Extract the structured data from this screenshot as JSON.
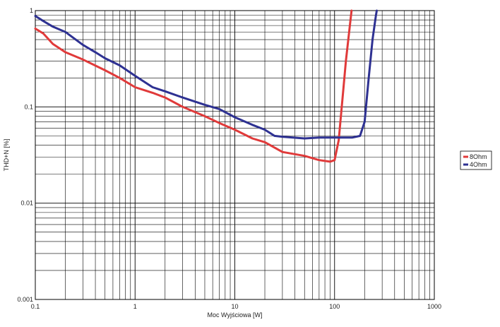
{
  "chart_data": {
    "type": "line",
    "xscale": "log",
    "yscale": "log",
    "xlim": [
      0.1,
      1000
    ],
    "ylim": [
      0.001,
      1
    ],
    "xlabel": "Moc Wyjściowa [W]",
    "ylabel": "THD+N [%]",
    "x_ticks": [
      {
        "value": 0.1,
        "label": "0.1"
      },
      {
        "value": 1,
        "label": "1"
      },
      {
        "value": 10,
        "label": "10"
      },
      {
        "value": 100,
        "label": "100"
      },
      {
        "value": 1000,
        "label": "1000"
      }
    ],
    "y_ticks": [
      {
        "value": 0.001,
        "label": "0.001"
      },
      {
        "value": 0.01,
        "label": "0.01"
      },
      {
        "value": 0.1,
        "label": "0.1"
      },
      {
        "value": 1,
        "label": "1"
      }
    ],
    "grid": true,
    "legend_position": "right",
    "series": [
      {
        "name": "8Ohm",
        "color": "#e03a3a",
        "points": [
          [
            0.1,
            0.65
          ],
          [
            0.12,
            0.58
          ],
          [
            0.15,
            0.45
          ],
          [
            0.2,
            0.37
          ],
          [
            0.3,
            0.31
          ],
          [
            0.5,
            0.24
          ],
          [
            0.7,
            0.2
          ],
          [
            1.0,
            0.16
          ],
          [
            1.5,
            0.14
          ],
          [
            2.0,
            0.125
          ],
          [
            3.0,
            0.1
          ],
          [
            5.0,
            0.08
          ],
          [
            7.0,
            0.068
          ],
          [
            10.0,
            0.058
          ],
          [
            15.0,
            0.047
          ],
          [
            20.0,
            0.043
          ],
          [
            30.0,
            0.034
          ],
          [
            50.0,
            0.031
          ],
          [
            70.0,
            0.028
          ],
          [
            90.0,
            0.027
          ],
          [
            100.0,
            0.028
          ],
          [
            110.0,
            0.045
          ],
          [
            120.0,
            0.12
          ],
          [
            130.0,
            0.3
          ],
          [
            140.0,
            0.6
          ],
          [
            148.0,
            1.0
          ]
        ]
      },
      {
        "name": "4Ohm",
        "color": "#2e3192",
        "points": [
          [
            0.1,
            0.88
          ],
          [
            0.12,
            0.78
          ],
          [
            0.15,
            0.68
          ],
          [
            0.2,
            0.6
          ],
          [
            0.3,
            0.44
          ],
          [
            0.4,
            0.37
          ],
          [
            0.5,
            0.32
          ],
          [
            0.7,
            0.27
          ],
          [
            1.0,
            0.21
          ],
          [
            1.5,
            0.16
          ],
          [
            2.0,
            0.145
          ],
          [
            3.0,
            0.125
          ],
          [
            5.0,
            0.105
          ],
          [
            7.0,
            0.095
          ],
          [
            10.0,
            0.078
          ],
          [
            15.0,
            0.065
          ],
          [
            20.0,
            0.058
          ],
          [
            25.0,
            0.05
          ],
          [
            30.0,
            0.049
          ],
          [
            50.0,
            0.047
          ],
          [
            70.0,
            0.048
          ],
          [
            100.0,
            0.048
          ],
          [
            150.0,
            0.048
          ],
          [
            180.0,
            0.05
          ],
          [
            200.0,
            0.07
          ],
          [
            220.0,
            0.2
          ],
          [
            240.0,
            0.5
          ],
          [
            260.0,
            0.9
          ],
          [
            265.0,
            1.0
          ]
        ]
      }
    ]
  }
}
